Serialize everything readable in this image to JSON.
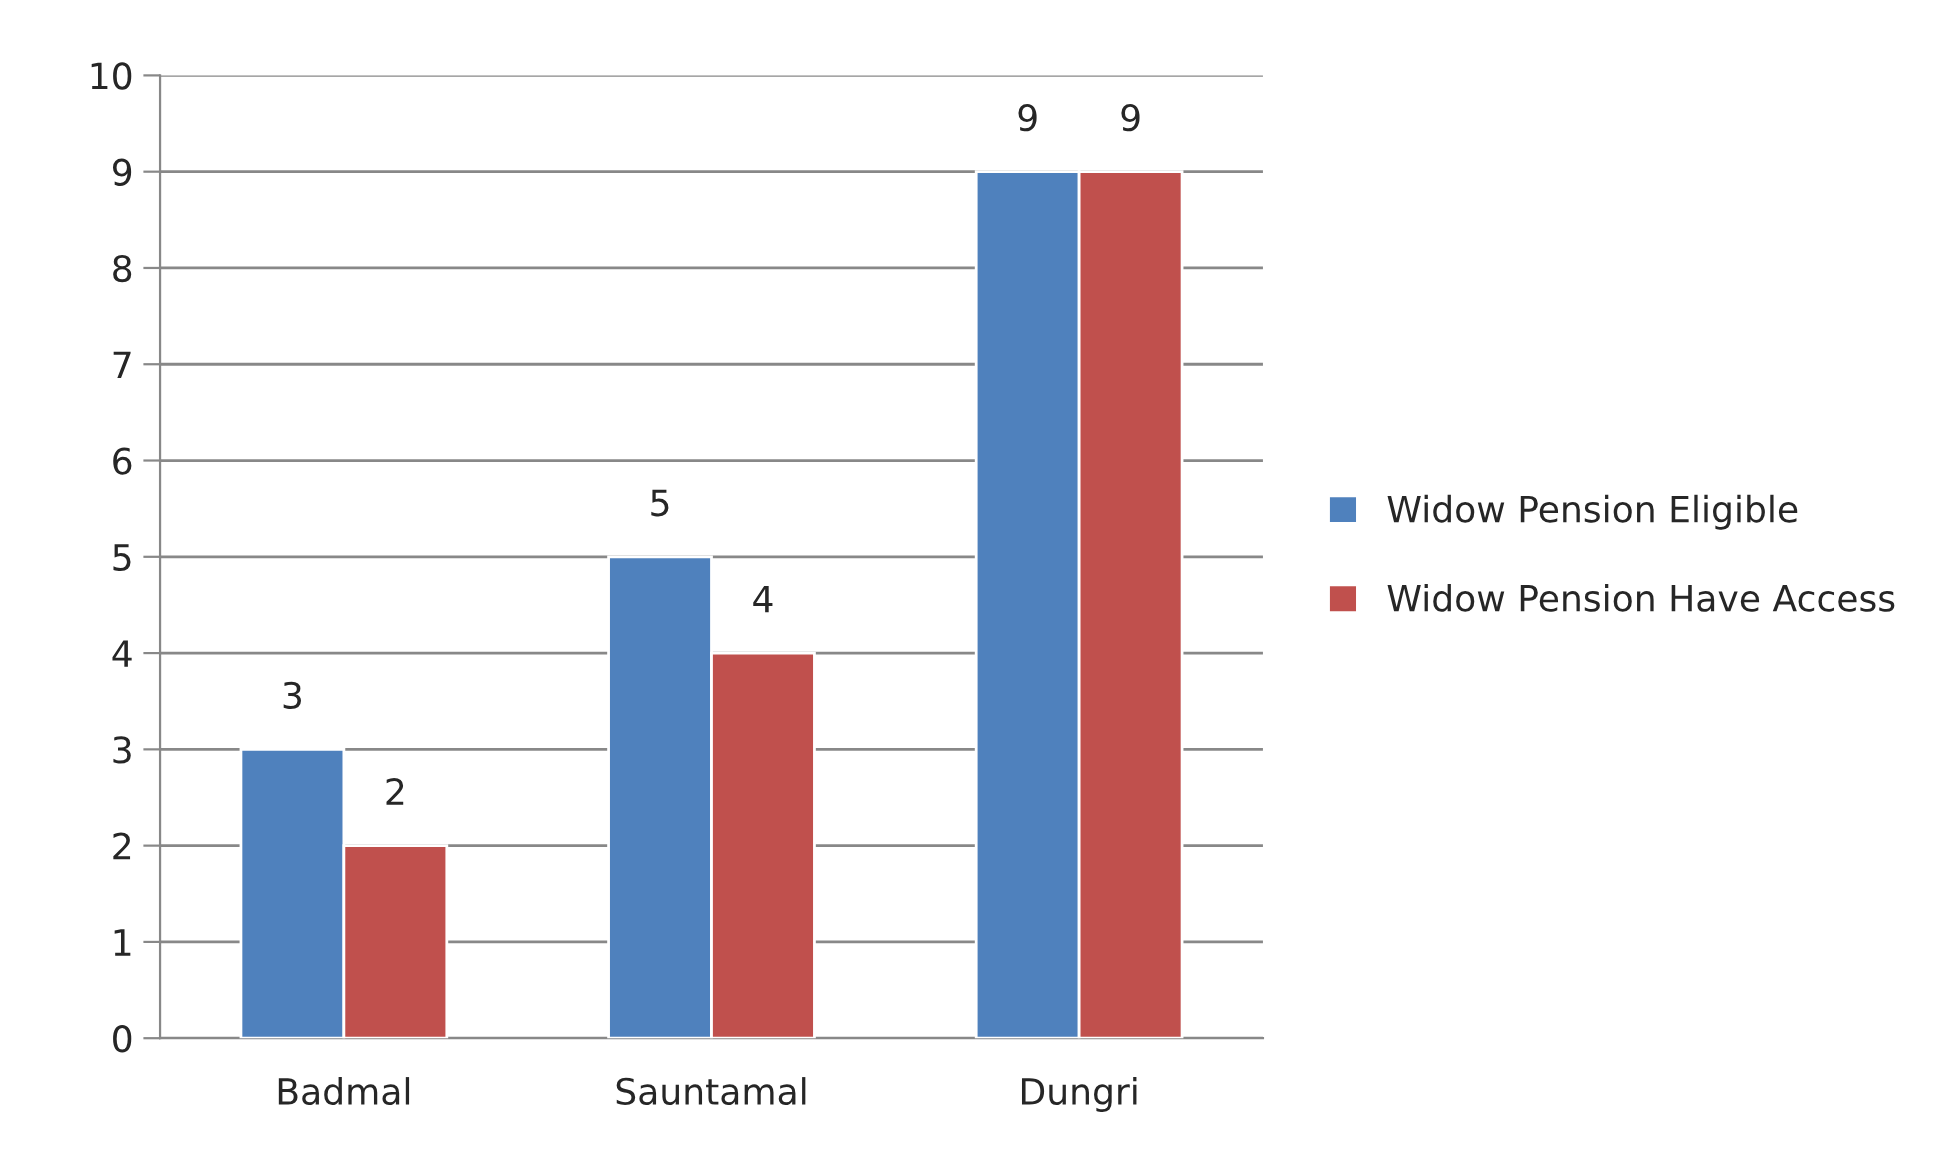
{
  "chart_data": {
    "type": "bar",
    "categories": [
      "Badmal",
      "Sauntamal",
      "Dungri"
    ],
    "series": [
      {
        "name": "Widow Pension Eligible",
        "color": "#4f81bd",
        "values": [
          3,
          5,
          9
        ]
      },
      {
        "name": "Widow Pension Have Access",
        "color": "#c0504d",
        "values": [
          2,
          4,
          9
        ]
      }
    ],
    "ylim": [
      0,
      10
    ],
    "yticks": [
      0,
      1,
      2,
      3,
      4,
      5,
      6,
      7,
      8,
      9,
      10
    ],
    "grid": "y",
    "legend": "right",
    "data_labels": true
  }
}
